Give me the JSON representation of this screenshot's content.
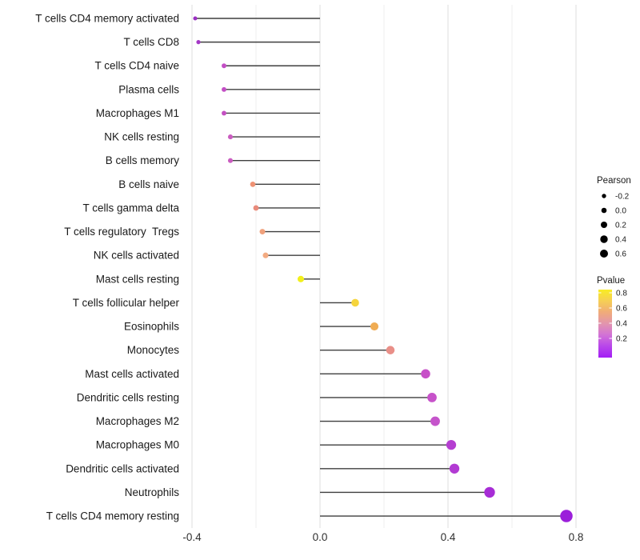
{
  "chart_data": {
    "type": "scatter",
    "subtype": "horizontal-lollipop",
    "title": "",
    "xlabel": "",
    "ylabel": "",
    "xlim": [
      -0.42,
      0.87
    ],
    "x_ticks": [
      -0.4,
      0.0,
      0.4,
      0.8
    ],
    "x_tick_labels": [
      "-0.4",
      "0.0",
      "0.4",
      "0.8"
    ],
    "x_minor_gridlines": [
      -0.2,
      0.2,
      0.6
    ],
    "grid": "vertical-only",
    "baseline_x": 0.0,
    "legend_position": "right",
    "categories": [
      "T cells CD4 memory activated",
      "T cells CD8",
      "T cells CD4 naive",
      "Plasma cells",
      "Macrophages M1",
      "NK cells resting",
      "B cells memory",
      "B cells naive",
      "T cells gamma delta",
      "T cells regulatory  Tregs",
      "NK cells activated",
      "Mast cells resting",
      "T cells follicular helper",
      "Eosinophils",
      "Monocytes",
      "Mast cells activated",
      "Dendritic cells resting",
      "Macrophages M2",
      "Macrophages M0",
      "Dendritic cells activated",
      "Neutrophils",
      "T cells CD4 memory resting"
    ],
    "points": [
      {
        "category": "T cells CD4 memory activated",
        "pearson": -0.39,
        "pvalue": 0.07,
        "color": "#9a30c2"
      },
      {
        "category": "T cells CD8",
        "pearson": -0.38,
        "pvalue": 0.09,
        "color": "#a438c6"
      },
      {
        "category": "T cells CD4 naive",
        "pearson": -0.3,
        "pvalue": 0.16,
        "color": "#c34ec5"
      },
      {
        "category": "Plasma cells",
        "pearson": -0.3,
        "pvalue": 0.16,
        "color": "#c34ec5"
      },
      {
        "category": "Macrophages M1",
        "pearson": -0.3,
        "pvalue": 0.17,
        "color": "#c450c2"
      },
      {
        "category": "NK cells resting",
        "pearson": -0.28,
        "pvalue": 0.18,
        "color": "#ca5cc0"
      },
      {
        "category": "B cells memory",
        "pearson": -0.28,
        "pvalue": 0.18,
        "color": "#ca5cc0"
      },
      {
        "category": "B cells naive",
        "pearson": -0.21,
        "pvalue": 0.45,
        "color": "#ee9274"
      },
      {
        "category": "T cells gamma delta",
        "pearson": -0.2,
        "pvalue": 0.43,
        "color": "#e98b7b"
      },
      {
        "category": "T cells regulatory  Tregs",
        "pearson": -0.18,
        "pvalue": 0.5,
        "color": "#f0a17c"
      },
      {
        "category": "NK cells activated",
        "pearson": -0.17,
        "pvalue": 0.52,
        "color": "#f3ab82"
      },
      {
        "category": "Mast cells resting",
        "pearson": -0.06,
        "pvalue": 0.82,
        "color": "#f2ef1c"
      },
      {
        "category": "T cells follicular helper",
        "pearson": 0.11,
        "pvalue": 0.72,
        "color": "#f6d53c"
      },
      {
        "category": "Eosinophils",
        "pearson": 0.17,
        "pvalue": 0.58,
        "color": "#f0ac53"
      },
      {
        "category": "Monocytes",
        "pearson": 0.22,
        "pvalue": 0.42,
        "color": "#e98f88"
      },
      {
        "category": "Mast cells activated",
        "pearson": 0.33,
        "pvalue": 0.2,
        "color": "#c750c8"
      },
      {
        "category": "Dendritic cells resting",
        "pearson": 0.35,
        "pvalue": 0.2,
        "color": "#c752ca"
      },
      {
        "category": "Macrophages M2",
        "pearson": 0.36,
        "pvalue": 0.19,
        "color": "#c554cb"
      },
      {
        "category": "Macrophages M0",
        "pearson": 0.41,
        "pvalue": 0.12,
        "color": "#b53fd1"
      },
      {
        "category": "Dendritic cells activated",
        "pearson": 0.42,
        "pvalue": 0.11,
        "color": "#b23bd3"
      },
      {
        "category": "Neutrophils",
        "pearson": 0.53,
        "pvalue": 0.08,
        "color": "#a72dd6"
      },
      {
        "category": "T cells CD4 memory resting",
        "pearson": 0.77,
        "pvalue": 0.03,
        "color": "#9b1fda"
      }
    ],
    "size_legend": {
      "title": "Pearson",
      "values": [
        -0.2,
        0.0,
        0.2,
        0.4,
        0.6
      ],
      "labels": [
        "-0.2",
        "0.0",
        "0.2",
        "0.4",
        "0.6"
      ],
      "dot_color": "#000000",
      "dot_radii": [
        2.7,
        3.3,
        4.0,
        4.7,
        5.0
      ]
    },
    "color_legend": {
      "title": "Pvalue",
      "tick_labels": [
        "0.8",
        "0.6",
        "0.4",
        "0.2"
      ],
      "gradient_top_to_bottom": [
        "#f8ec23",
        "#f6cf55",
        "#f0ab79",
        "#e295ae",
        "#d272d6",
        "#b846ea",
        "#a31df5"
      ]
    },
    "style": {
      "stem_color": "#3f3f3f",
      "gridline_major_color": "#e3e3e3",
      "gridline_minor_color": "#efefef",
      "axis_text_color": "#2f2f2f",
      "category_text_color": "#1a1a1a",
      "background": "#ffffff"
    }
  }
}
